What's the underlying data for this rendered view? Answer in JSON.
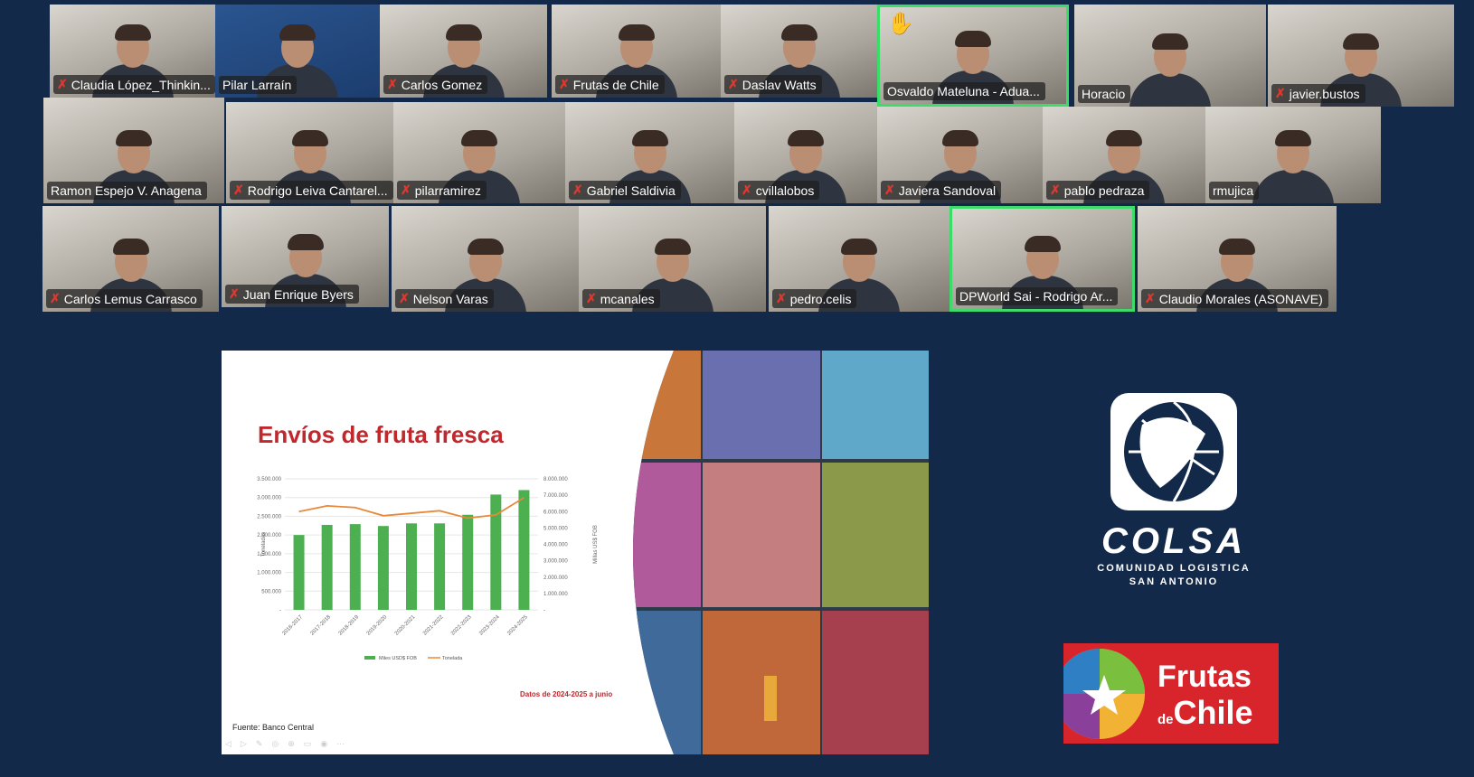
{
  "meeting": {
    "participants": [
      {
        "name": "Claudia López_Thinkin...",
        "muted": true
      },
      {
        "name": "Pilar Larraín",
        "muted": false
      },
      {
        "name": "Carlos Gomez",
        "muted": true
      },
      {
        "name": "Frutas de Chile",
        "muted": true
      },
      {
        "name": "Daslav Watts",
        "muted": true
      },
      {
        "name": "Osvaldo Mateluna - Adua...",
        "muted": false,
        "raised_hand": true,
        "active": true
      },
      {
        "name": "Horacio",
        "muted": false
      },
      {
        "name": "javier.bustos",
        "muted": true
      },
      {
        "name": "Ramon Espejo V. Anagena",
        "muted": false
      },
      {
        "name": "Rodrigo Leiva Cantarel...",
        "muted": true
      },
      {
        "name": "pilarramirez",
        "muted": true
      },
      {
        "name": "Gabriel Saldivia",
        "muted": true
      },
      {
        "name": "cvillalobos",
        "muted": true
      },
      {
        "name": "Javiera Sandoval",
        "muted": true
      },
      {
        "name": "pablo pedraza",
        "muted": true
      },
      {
        "name": "rmujica",
        "muted": false
      },
      {
        "name": "Carlos Lemus Carrasco",
        "muted": true
      },
      {
        "name": "Juan Enrique Byers",
        "muted": true
      },
      {
        "name": "Nelson Varas",
        "muted": true
      },
      {
        "name": "mcanales",
        "muted": true
      },
      {
        "name": "pedro.celis",
        "muted": true
      },
      {
        "name": "DPWorld Sai - Rodrigo Ar...",
        "muted": false,
        "active": true
      },
      {
        "name": "Claudio Morales (ASONAVE)",
        "muted": true
      }
    ],
    "muted_icon": "mic-off-icon",
    "raised_hand_icon": "raised-hand-icon"
  },
  "slide": {
    "title": "Envíos de fruta fresca",
    "note": "Datos de 2024-2025 a junio",
    "source": "Fuente: Banco Central"
  },
  "chart_data": {
    "type": "bar",
    "categories": [
      "2016-2017",
      "2017-2018",
      "2018-2019",
      "2019-2020",
      "2020-2021",
      "2021-2022",
      "2022-2023",
      "2023-2024",
      "2024-2025"
    ],
    "ylabel": "Toneladas",
    "y2label": "Millas US$ FOB",
    "ylim": [
      0,
      3500000
    ],
    "y2lim": [
      0,
      8000000
    ],
    "yticks": [
      "-",
      "500.000",
      "1.000.000",
      "1.500.000",
      "2.000.000",
      "2.500.000",
      "3.000.000",
      "3.500.000"
    ],
    "y2ticks": [
      "-",
      "1.000.000",
      "2.000.000",
      "3.000.000",
      "4.000.000",
      "5.000.000",
      "6.000.000",
      "7.000.000",
      "8.000.000"
    ],
    "grid": true,
    "legend": "bottom",
    "series": [
      {
        "name": "Miles USD$ FOB",
        "kind": "bar",
        "axis": "left",
        "color": "#4caf50",
        "values": [
          2000000,
          2270000,
          2290000,
          2240000,
          2310000,
          2310000,
          2540000,
          3080000,
          3200000
        ]
      },
      {
        "name": "Tonelada",
        "kind": "line",
        "axis": "right",
        "color": "#e8893a",
        "values": [
          6000000,
          6350000,
          6250000,
          5750000,
          5900000,
          6050000,
          5600000,
          5800000,
          6850000
        ]
      }
    ]
  },
  "logos": {
    "colsa": {
      "word": "COLSA",
      "line1": "COMUNIDAD LOGISTICA",
      "line2": "SAN ANTONIO"
    },
    "frutas": {
      "line1": "Frutas",
      "de": "de",
      "line2": "Chile"
    }
  }
}
